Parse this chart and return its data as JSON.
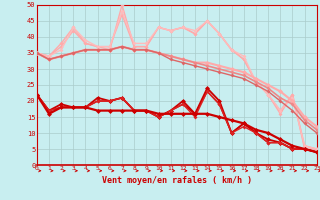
{
  "bg_color": "#c8eef0",
  "grid_color": "#aacccc",
  "xlabel": "Vent moyen/en rafales ( km/h )",
  "xlim": [
    0,
    23
  ],
  "ylim": [
    0,
    50
  ],
  "yticks": [
    0,
    5,
    10,
    15,
    20,
    25,
    30,
    35,
    40,
    45,
    50
  ],
  "xticks": [
    0,
    1,
    2,
    3,
    4,
    5,
    6,
    7,
    8,
    9,
    10,
    11,
    12,
    13,
    14,
    15,
    16,
    17,
    18,
    19,
    20,
    21,
    22,
    23
  ],
  "series": [
    {
      "x": [
        0,
        1,
        2,
        3,
        4,
        5,
        6,
        7,
        8,
        9,
        10,
        11,
        12,
        13,
        14,
        15,
        16,
        17,
        18,
        19,
        20,
        21,
        22,
        23
      ],
      "y": [
        35,
        34,
        37,
        42,
        38,
        37,
        36,
        50,
        37,
        37,
        43,
        42,
        43,
        41,
        45,
        41,
        36,
        33,
        26,
        22,
        16,
        22,
        5,
        5
      ],
      "color": "#ffaaaa",
      "lw": 1.0,
      "marker": "D",
      "ms": 2.0
    },
    {
      "x": [
        0,
        1,
        2,
        3,
        4,
        5,
        6,
        7,
        8,
        9,
        10,
        11,
        12,
        13,
        14,
        15,
        16,
        17,
        18,
        19,
        20,
        21,
        22,
        23
      ],
      "y": [
        35,
        34,
        38,
        43,
        38,
        37,
        37,
        47,
        37,
        37,
        43,
        42,
        43,
        41,
        45,
        41,
        36,
        33,
        26,
        22,
        17,
        22,
        6,
        5
      ],
      "color": "#ffaaaa",
      "lw": 1.0,
      "marker": "D",
      "ms": 2.0
    },
    {
      "x": [
        0,
        1,
        2,
        3,
        4,
        5,
        6,
        7,
        8,
        9,
        10,
        11,
        12,
        13,
        14,
        15,
        16,
        17,
        18,
        19,
        20,
        21,
        22,
        23
      ],
      "y": [
        35,
        34,
        36,
        43,
        39,
        37,
        37,
        48,
        38,
        38,
        43,
        42,
        43,
        42,
        45,
        41,
        36,
        34,
        26,
        22,
        17,
        21,
        6,
        5
      ],
      "color": "#ffbbbb",
      "lw": 1.0,
      "marker": "D",
      "ms": 2.0
    },
    {
      "x": [
        0,
        1,
        2,
        3,
        4,
        5,
        6,
        7,
        8,
        9,
        10,
        11,
        12,
        13,
        14,
        15,
        16,
        17,
        18,
        19,
        20,
        21,
        22,
        23
      ],
      "y": [
        35,
        33,
        34,
        35,
        36,
        36,
        36,
        37,
        36,
        36,
        35,
        34,
        33,
        32,
        32,
        31,
        30,
        29,
        27,
        25,
        23,
        20,
        15,
        12
      ],
      "color": "#ffaaaa",
      "lw": 1.5,
      "marker": "D",
      "ms": 2.5
    },
    {
      "x": [
        0,
        1,
        2,
        3,
        4,
        5,
        6,
        7,
        8,
        9,
        10,
        11,
        12,
        13,
        14,
        15,
        16,
        17,
        18,
        19,
        20,
        21,
        22,
        23
      ],
      "y": [
        35,
        33,
        34,
        35,
        36,
        36,
        36,
        37,
        36,
        36,
        35,
        34,
        33,
        32,
        31,
        30,
        29,
        28,
        26,
        24,
        21,
        19,
        14,
        11
      ],
      "color": "#ee8888",
      "lw": 1.2,
      "marker": "D",
      "ms": 2.0
    },
    {
      "x": [
        0,
        1,
        2,
        3,
        4,
        5,
        6,
        7,
        8,
        9,
        10,
        11,
        12,
        13,
        14,
        15,
        16,
        17,
        18,
        19,
        20,
        21,
        22,
        23
      ],
      "y": [
        35,
        33,
        34,
        35,
        36,
        36,
        36,
        37,
        36,
        36,
        35,
        33,
        32,
        31,
        30,
        29,
        28,
        27,
        25,
        23,
        20,
        17,
        13,
        10
      ],
      "color": "#dd6666",
      "lw": 1.0,
      "marker": "D",
      "ms": 2.0
    },
    {
      "x": [
        0,
        1,
        2,
        3,
        4,
        5,
        6,
        7,
        8,
        9,
        10,
        11,
        12,
        13,
        14,
        15,
        16,
        17,
        18,
        19,
        20,
        21,
        22,
        23
      ],
      "y": [
        22,
        17,
        19,
        18,
        18,
        21,
        20,
        21,
        17,
        17,
        15,
        17,
        20,
        16,
        24,
        20,
        10,
        13,
        10,
        8,
        7,
        5,
        5,
        4
      ],
      "color": "#cc0000",
      "lw": 1.3,
      "marker": "D",
      "ms": 2.5
    },
    {
      "x": [
        0,
        1,
        2,
        3,
        4,
        5,
        6,
        7,
        8,
        9,
        10,
        11,
        12,
        13,
        14,
        15,
        16,
        17,
        18,
        19,
        20,
        21,
        22,
        23
      ],
      "y": [
        22,
        17,
        18,
        18,
        18,
        20,
        20,
        21,
        17,
        17,
        15,
        17,
        19,
        16,
        23,
        19,
        10,
        13,
        10,
        7,
        7,
        5,
        5,
        4
      ],
      "color": "#cc0000",
      "lw": 1.1,
      "marker": "D",
      "ms": 2.0
    },
    {
      "x": [
        0,
        1,
        2,
        3,
        4,
        5,
        6,
        7,
        8,
        9,
        10,
        11,
        12,
        13,
        14,
        15,
        16,
        17,
        18,
        19,
        20,
        21,
        22,
        23
      ],
      "y": [
        22,
        17,
        18,
        18,
        18,
        20,
        20,
        21,
        17,
        17,
        15,
        17,
        19,
        15,
        23,
        19,
        10,
        12,
        10,
        7,
        7,
        5,
        5,
        4
      ],
      "color": "#dd2222",
      "lw": 1.0,
      "marker": "D",
      "ms": 2.0
    },
    {
      "x": [
        0,
        1,
        2,
        3,
        4,
        5,
        6,
        7,
        8,
        9,
        10,
        11,
        12,
        13,
        14,
        15,
        16,
        17,
        18,
        19,
        20,
        21,
        22,
        23
      ],
      "y": [
        22,
        16,
        18,
        18,
        18,
        17,
        17,
        17,
        17,
        17,
        16,
        16,
        16,
        16,
        16,
        15,
        14,
        13,
        11,
        10,
        8,
        6,
        5,
        4
      ],
      "color": "#cc0000",
      "lw": 1.6,
      "marker": "D",
      "ms": 2.5
    }
  ],
  "arrows": {
    "angles_deg": [
      0,
      0,
      0,
      0,
      0,
      0,
      0,
      0,
      0,
      0,
      0,
      0,
      0,
      0,
      0,
      0,
      0,
      0,
      0,
      0,
      315,
      45,
      45,
      45
    ]
  }
}
